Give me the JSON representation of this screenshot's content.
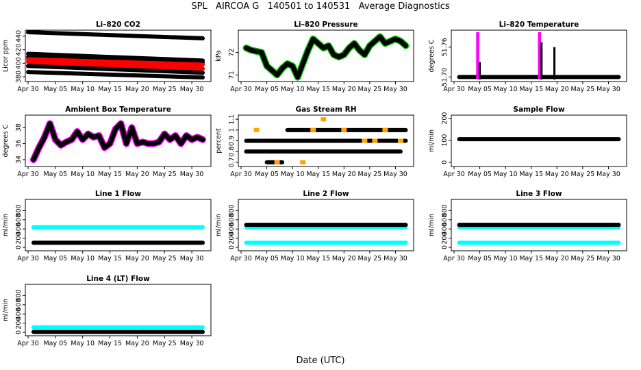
{
  "main_title": "SPL   AIRCOA G   140501 to 140531   Average Diagnostics",
  "xlabel": "Date (UTC)",
  "colors": {
    "black": "#000000",
    "red": "#ff0000",
    "green": "#00cc00",
    "magenta": "#ff00ff",
    "orange": "#ffa500",
    "cyan": "#00ffff",
    "white": "#ffffff"
  },
  "chart_data": [
    {
      "type": "scatter",
      "title": "Li–820 CO2",
      "ylabel": "Licor ppm",
      "yticks": [
        380,
        400,
        420,
        440
      ],
      "ylim": [
        376,
        446
      ],
      "xticks": [
        "Apr 30",
        "May 05",
        "May 10",
        "May 15",
        "May 20",
        "May 25",
        "May 30"
      ],
      "xlim": [
        0,
        33
      ],
      "series": [
        {
          "name": "black-1",
          "color": "#000000",
          "x": [
            0,
            32
          ],
          "y": [
            446,
            437
          ]
        },
        {
          "name": "black-2",
          "color": "#000000",
          "x": [
            0,
            32
          ],
          "y": [
            414,
            404
          ]
        },
        {
          "name": "black-3",
          "color": "#000000",
          "x": [
            0,
            32
          ],
          "y": [
            409,
            401
          ]
        },
        {
          "name": "red-1",
          "color": "#ff0000",
          "x": [
            0,
            32
          ],
          "y": [
            406,
            398
          ]
        },
        {
          "name": "red-2",
          "color": "#ff0000",
          "x": [
            0,
            32
          ],
          "y": [
            402,
            392
          ]
        },
        {
          "name": "black-4",
          "color": "#000000",
          "x": [
            0,
            32
          ],
          "y": [
            396,
            386
          ]
        },
        {
          "name": "black-5",
          "color": "#000000",
          "x": [
            0,
            32
          ],
          "y": [
            387,
            379
          ]
        }
      ]
    },
    {
      "type": "line",
      "title": "Li–820 Pressure",
      "ylabel": "kPa",
      "yticks": [
        71.0,
        72.0
      ],
      "ylim": [
        70.8,
        72.9
      ],
      "xticks": [
        "Apr 30",
        "May 05",
        "May 10",
        "May 15",
        "May 20",
        "May 25",
        "May 30"
      ],
      "xlim": [
        0,
        33
      ],
      "series": [
        {
          "name": "pressure",
          "color": "#000000",
          "outline": "#00cc00",
          "x": [
            1,
            2,
            3,
            4,
            5,
            6,
            7,
            8,
            9,
            10,
            11,
            12,
            13,
            14,
            15,
            16,
            17,
            18,
            19,
            20,
            21,
            22,
            23,
            24,
            25,
            26,
            27,
            28,
            29,
            30,
            31,
            32
          ],
          "y": [
            72.2,
            72.1,
            72.05,
            72.0,
            71.4,
            71.2,
            71.0,
            71.3,
            71.5,
            71.4,
            70.9,
            71.5,
            72.1,
            72.6,
            72.4,
            72.2,
            72.3,
            71.9,
            71.8,
            71.9,
            72.2,
            72.4,
            72.1,
            71.9,
            72.3,
            72.5,
            72.7,
            72.4,
            72.5,
            72.6,
            72.5,
            72.3
          ]
        }
      ]
    },
    {
      "type": "scatter",
      "title": "Li–820 Temperature",
      "ylabel": "degrees C",
      "yticks": [
        51.7,
        51.76
      ],
      "ylim": [
        51.695,
        51.79
      ],
      "xticks": [
        "Apr 30",
        "May 05",
        "May 10",
        "May 15",
        "May 20",
        "May 25",
        "May 30"
      ],
      "xlim": [
        0,
        33
      ],
      "series": [
        {
          "name": "baseline",
          "color": "#000000",
          "x": [
            1,
            32
          ],
          "y": [
            51.7,
            51.7
          ]
        },
        {
          "name": "spikes-magenta",
          "color": "#ff00ff",
          "x": [
            4.5,
            4.7,
            16.5,
            16.7
          ],
          "y": [
            51.79,
            51.79,
            51.79,
            51.79
          ]
        },
        {
          "name": "spikes-black",
          "color": "#000000",
          "x": [
            5,
            17,
            19.5
          ],
          "y": [
            51.73,
            51.77,
            51.76
          ]
        }
      ]
    },
    {
      "type": "line",
      "title": "Ambient Box Temperature",
      "ylabel": "degrees C",
      "yticks": [
        34,
        36,
        38
      ],
      "ylim": [
        33.4,
        39.3
      ],
      "xticks": [
        "Apr 30",
        "May 05",
        "May 10",
        "May 15",
        "May 20",
        "May 25",
        "May 30"
      ],
      "xlim": [
        0,
        33
      ],
      "series": [
        {
          "name": "box-temp",
          "color": "#000000",
          "outline": "#ff00ff",
          "x": [
            1,
            2,
            3,
            4,
            5,
            6,
            7,
            8,
            9,
            10,
            11,
            12,
            13,
            14,
            15,
            16,
            17,
            18,
            19,
            20,
            21,
            22,
            23,
            24,
            25,
            26,
            27,
            28,
            29,
            30,
            31,
            32
          ],
          "y": [
            34.0,
            35.5,
            36.8,
            38.5,
            36.5,
            35.8,
            36.2,
            36.5,
            37.5,
            36.5,
            37.2,
            36.8,
            37.0,
            35.5,
            36.0,
            37.8,
            38.5,
            36.0,
            38.0,
            36.0,
            36.2,
            36.0,
            36.0,
            36.2,
            37.2,
            36.5,
            37.0,
            36.0,
            37.0,
            36.5,
            36.8,
            36.5
          ]
        }
      ]
    },
    {
      "type": "scatter",
      "title": "Gas Stream RH",
      "ylabel": "percent",
      "yticks": [
        0.7,
        0.8,
        0.9,
        1.0,
        1.1
      ],
      "ylim": [
        0.68,
        1.12
      ],
      "xticks": [
        "Apr 30",
        "May 05",
        "May 10",
        "May 15",
        "May 20",
        "May 25",
        "May 30"
      ],
      "xlim": [
        0,
        33
      ],
      "series": [
        {
          "name": "rh-0.9",
          "color": "#000000",
          "x": [
            1,
            32
          ],
          "y": [
            0.9,
            0.9
          ]
        },
        {
          "name": "rh-1.0",
          "color": "#000000",
          "x": [
            9,
            32
          ],
          "y": [
            1.0,
            1.0
          ]
        },
        {
          "name": "rh-0.8",
          "color": "#000000",
          "x": [
            1,
            31
          ],
          "y": [
            0.8,
            0.8
          ]
        },
        {
          "name": "rh-0.7",
          "color": "#000000",
          "x": [
            5,
            8
          ],
          "y": [
            0.7,
            0.7
          ]
        },
        {
          "name": "rh-orange",
          "color": "#ffa500",
          "x": [
            3,
            7,
            12,
            14,
            16,
            20,
            24,
            26,
            28,
            31
          ],
          "y": [
            1.0,
            0.7,
            0.7,
            1.0,
            1.1,
            1.0,
            0.9,
            0.9,
            1.0,
            0.9
          ]
        }
      ]
    },
    {
      "type": "scatter",
      "title": "Sample Flow",
      "ylabel": "ml/min",
      "yticks": [
        0,
        100,
        200
      ],
      "ylim": [
        -10,
        205
      ],
      "xticks": [
        "Apr 30",
        "May 05",
        "May 10",
        "May 15",
        "May 20",
        "May 25",
        "May 30"
      ],
      "xlim": [
        0,
        33
      ],
      "series": [
        {
          "name": "sample",
          "color": "#000000",
          "x": [
            1,
            32
          ],
          "y": [
            105,
            105
          ]
        }
      ]
    },
    {
      "type": "scatter",
      "title": "Line 1 Flow",
      "ylabel": "ml/min",
      "yticks": [
        0,
        200,
        400,
        600,
        800
      ],
      "ylim": [
        -30,
        1000
      ],
      "xticks": [
        "Apr 30",
        "May 05",
        "May 10",
        "May 15",
        "May 20",
        "May 25",
        "May 30"
      ],
      "xlim": [
        0,
        33
      ],
      "series": [
        {
          "name": "cyan",
          "color": "#00ffff",
          "x": [
            1,
            32
          ],
          "y": [
            440,
            440
          ]
        },
        {
          "name": "black",
          "color": "#000000",
          "x": [
            1,
            32
          ],
          "y": [
            100,
            100
          ]
        }
      ]
    },
    {
      "type": "scatter",
      "title": "Line 2 Flow",
      "ylabel": "ml/min",
      "yticks": [
        0,
        200,
        400,
        600,
        800
      ],
      "ylim": [
        -30,
        1000
      ],
      "xticks": [
        "Apr 30",
        "May 05",
        "May 10",
        "May 15",
        "May 20",
        "May 25",
        "May 30"
      ],
      "xlim": [
        0,
        33
      ],
      "series": [
        {
          "name": "cyan-high",
          "color": "#00ffff",
          "x": [
            1,
            32
          ],
          "y": [
            440,
            440
          ]
        },
        {
          "name": "black",
          "color": "#000000",
          "x": [
            1,
            32
          ],
          "y": [
            490,
            490
          ]
        },
        {
          "name": "cyan-low",
          "color": "#00ffff",
          "x": [
            1,
            32
          ],
          "y": [
            100,
            100
          ]
        }
      ]
    },
    {
      "type": "scatter",
      "title": "Line 3 Flow",
      "ylabel": "ml/min",
      "yticks": [
        0,
        200,
        400,
        600,
        800
      ],
      "ylim": [
        -30,
        1000
      ],
      "xticks": [
        "Apr 30",
        "May 05",
        "May 10",
        "May 15",
        "May 20",
        "May 25",
        "May 30"
      ],
      "xlim": [
        0,
        33
      ],
      "series": [
        {
          "name": "cyan-high",
          "color": "#00ffff",
          "x": [
            1,
            32
          ],
          "y": [
            440,
            440
          ]
        },
        {
          "name": "black",
          "color": "#000000",
          "x": [
            1,
            32
          ],
          "y": [
            490,
            490
          ]
        },
        {
          "name": "cyan-low",
          "color": "#00ffff",
          "x": [
            1,
            32
          ],
          "y": [
            100,
            100
          ]
        }
      ]
    },
    {
      "type": "scatter",
      "title": "Line 4 (LT) Flow",
      "ylabel": "ml/min",
      "yticks": [
        0,
        200,
        400,
        600,
        800
      ],
      "ylim": [
        -30,
        1000
      ],
      "xticks": [
        "Apr 30",
        "May 05",
        "May 10",
        "May 15",
        "May 20",
        "May 25",
        "May 30"
      ],
      "xlim": [
        0,
        33
      ],
      "series": [
        {
          "name": "cyan",
          "color": "#00ffff",
          "x": [
            1,
            32
          ],
          "y": [
            110,
            110
          ]
        },
        {
          "name": "black",
          "color": "#000000",
          "x": [
            1,
            32
          ],
          "y": [
            10,
            10
          ]
        }
      ]
    }
  ]
}
